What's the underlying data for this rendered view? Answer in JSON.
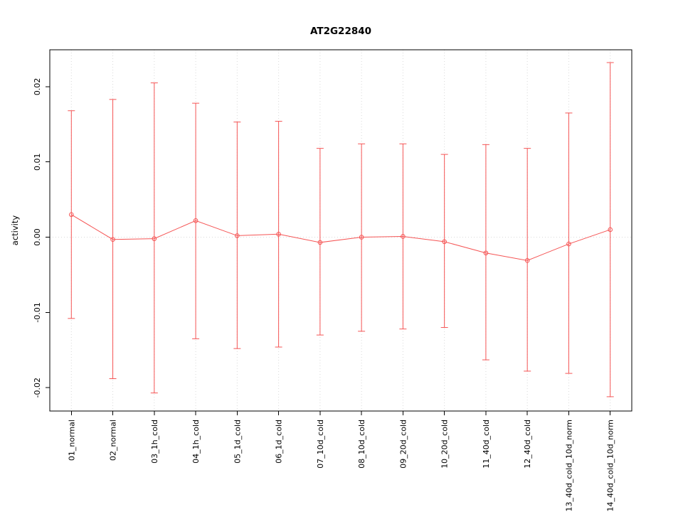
{
  "chart_data": {
    "type": "line",
    "title": "AT2G22840",
    "xlabel": "",
    "ylabel": "activity",
    "grid": true,
    "legend": "none",
    "point_style": "open-circle",
    "error_bars": true,
    "line_color": "#f55555",
    "grid_color": "#d9d9d9",
    "axis_color": "#000000",
    "ylim": [
      -0.0231,
      0.0249
    ],
    "ytick_values": [
      -0.02,
      -0.01,
      0.0,
      0.01,
      0.02
    ],
    "ytick_labels": [
      "-0.02",
      "-0.01",
      "0.00",
      "0.01",
      "0.02"
    ],
    "categories": [
      "01_normal",
      "02_normal",
      "03_1h_cold",
      "04_1h_cold",
      "05_1d_cold",
      "06_1d_cold",
      "07_10d_cold",
      "08_10d_cold",
      "09_20d_cold",
      "10_20d_cold",
      "11_40d_cold",
      "12_40d_cold",
      "13_40d_cold_10d_norm",
      "14_40d_cold_10d_norm"
    ],
    "series": [
      {
        "name": "activity",
        "values": [
          0.003,
          -0.0003,
          -0.0002,
          0.0022,
          0.0002,
          0.0004,
          -0.0007,
          0.0,
          0.0001,
          -0.0006,
          -0.0021,
          -0.0031,
          -0.0009,
          0.001
        ],
        "error_upper": [
          0.0168,
          0.0183,
          0.0205,
          0.0178,
          0.0153,
          0.0154,
          0.0118,
          0.0124,
          0.0124,
          0.011,
          0.0123,
          0.0118,
          0.0165,
          0.0232
        ],
        "error_lower": [
          -0.0108,
          -0.0188,
          -0.0207,
          -0.0135,
          -0.0148,
          -0.0146,
          -0.013,
          -0.0125,
          -0.0122,
          -0.012,
          -0.0163,
          -0.0178,
          -0.0181,
          -0.0212
        ]
      }
    ]
  }
}
